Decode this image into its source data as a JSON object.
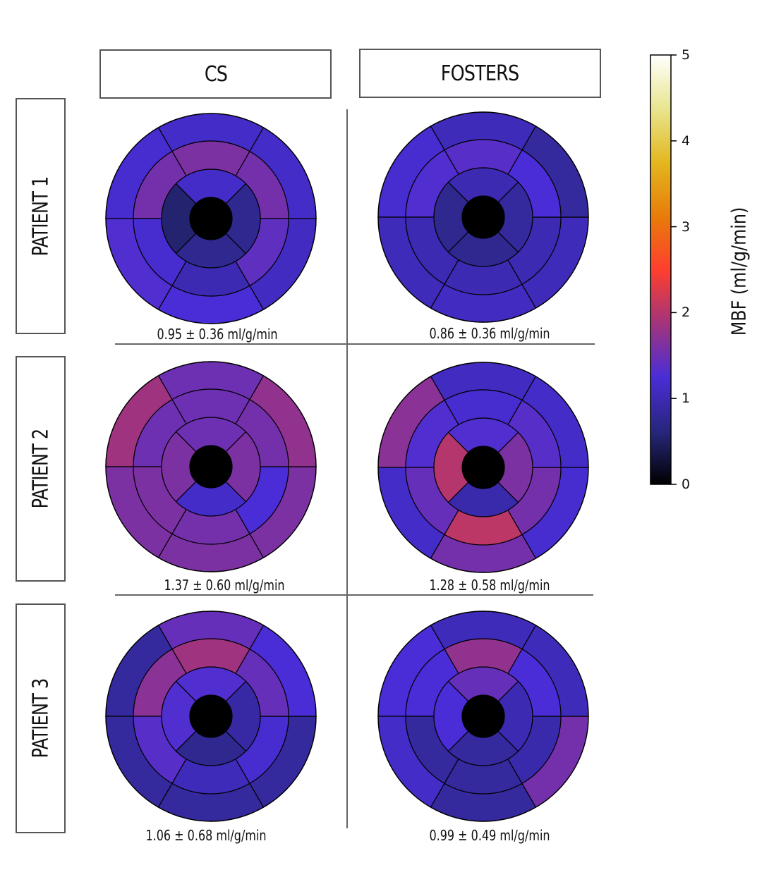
{
  "columns": [
    "CS",
    "FOSTERS"
  ],
  "rows": [
    "PATIENT 1",
    "PATIENT 2",
    "PATIENT 3"
  ],
  "colorbar": {
    "label": "MBF (ml/g/min)",
    "min": 0,
    "max": 5,
    "ticks": [
      "0",
      "1",
      "2",
      "3",
      "4",
      "5"
    ],
    "colormap": "CMRmap"
  },
  "chart_data": [
    {
      "type": "heatmap",
      "title": "CS - PATIENT 1",
      "caption": "0.95 ± 0.36 ml/g/min",
      "outer": [
        1.15,
        1.2,
        1.3,
        1.25,
        1.1,
        1.15
      ],
      "mid": [
        1.6,
        1.55,
        1.2,
        1.0,
        1.4,
        1.55
      ],
      "inner": [
        1.15,
        0.55,
        0.75,
        0.75
      ]
    },
    {
      "type": "heatmap",
      "title": "FOSTERS - PATIENT 1",
      "caption": "0.86 ± 0.36 ml/g/min",
      "outer": [
        1.05,
        1.2,
        1.05,
        1.1,
        1.05,
        0.85
      ],
      "mid": [
        1.35,
        1.3,
        1.0,
        1.0,
        1.0,
        1.25
      ],
      "inner": [
        1.0,
        0.75,
        0.75,
        0.85
      ]
    },
    {
      "type": "heatmap",
      "title": "CS - PATIENT 2",
      "caption": "1.37 ± 0.60 ml/g/min",
      "outer": [
        1.5,
        1.85,
        1.6,
        1.6,
        1.6,
        1.75
      ],
      "mid": [
        1.5,
        1.5,
        1.6,
        1.55,
        1.25,
        1.55
      ],
      "inner": [
        1.5,
        1.6,
        1.15,
        1.6
      ]
    },
    {
      "type": "heatmap",
      "title": "FOSTERS - PATIENT 2",
      "caption": "1.28 ± 0.58 ml/g/min",
      "outer": [
        1.1,
        1.7,
        1.15,
        1.55,
        1.2,
        1.15
      ],
      "mid": [
        1.2,
        1.3,
        1.45,
        2.05,
        1.55,
        1.35
      ],
      "inner": [
        1.3,
        2.0,
        0.95,
        1.6
      ]
    },
    {
      "type": "heatmap",
      "title": "CS - PATIENT 3",
      "caption": "1.06 ± 0.68 ml/g/min",
      "outer": [
        1.45,
        0.85,
        0.85,
        0.85,
        0.85,
        1.25
      ],
      "mid": [
        1.85,
        1.7,
        1.35,
        1.05,
        1.2,
        1.45
      ],
      "inner": [
        1.3,
        1.3,
        0.75,
        0.9
      ]
    },
    {
      "type": "heatmap",
      "title": "FOSTERS - PATIENT 3",
      "caption": "0.99 ± 0.49 ml/g/min",
      "outer": [
        1.05,
        1.25,
        1.15,
        0.85,
        1.55,
        1.05
      ],
      "mid": [
        1.75,
        1.25,
        0.85,
        0.85,
        0.95,
        1.25
      ],
      "inner": [
        1.45,
        1.25,
        0.85,
        1.0
      ]
    }
  ]
}
